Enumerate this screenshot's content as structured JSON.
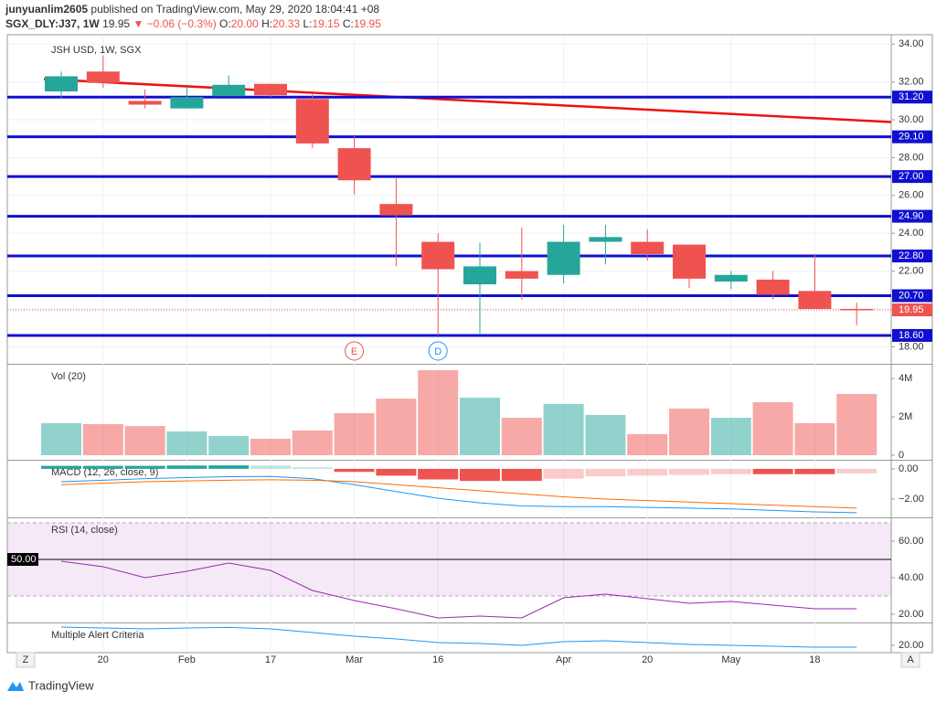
{
  "header": {
    "author": "junyuanlim2605",
    "published": "published on TradingView.com, May 29, 2020 18:04:41 +08",
    "symbol": "SGX_DLY:J37, 1W",
    "last": "19.95",
    "change": "▼ −0.06 (−0.3%)",
    "ohlc": [
      {
        "label": "O:",
        "value": "20.00"
      },
      {
        "label": "H:",
        "value": "20.33"
      },
      {
        "label": "L:",
        "value": "19.15"
      },
      {
        "label": "C:",
        "value": "19.95"
      }
    ]
  },
  "footer": {
    "logo": "TradingView",
    "zoom": "Z",
    "auto": "A"
  },
  "chart_data": [
    {
      "type": "candlestick",
      "title": "JSH USD, 1W, SGX",
      "categories": [
        null,
        "20",
        null,
        "Feb",
        null,
        "17",
        null,
        "Mar",
        null,
        "16",
        null,
        null,
        "Apr",
        null,
        "20",
        null,
        "May",
        null,
        "18",
        null
      ],
      "open": [
        31.5,
        32.55,
        31.0,
        30.6,
        31.25,
        31.9,
        31.1,
        28.5,
        25.55,
        23.55,
        21.3,
        22.0,
        21.8,
        23.55,
        23.55,
        23.4,
        21.45,
        21.55,
        20.95,
        20.0
      ],
      "high": [
        32.55,
        33.4,
        31.6,
        31.7,
        32.35,
        31.9,
        31.35,
        29.15,
        26.9,
        24.0,
        23.5,
        24.3,
        24.45,
        24.45,
        24.2,
        23.4,
        22.0,
        22.0,
        22.9,
        20.33
      ],
      "low": [
        31.1,
        31.7,
        30.6,
        30.6,
        31.25,
        31.2,
        28.5,
        26.05,
        22.25,
        18.6,
        18.7,
        20.5,
        21.35,
        22.35,
        22.55,
        21.1,
        21.05,
        20.5,
        20.0,
        19.15
      ],
      "close": [
        32.3,
        31.95,
        30.8,
        31.2,
        31.85,
        31.3,
        28.75,
        26.8,
        24.95,
        22.1,
        22.25,
        21.6,
        23.55,
        23.8,
        22.9,
        21.6,
        21.8,
        20.75,
        20.0,
        19.95
      ],
      "up_color": "#26a69a",
      "down_color": "#ef5350",
      "ylim": [
        17.1,
        34.4
      ],
      "yticks": [
        {
          "value": 18,
          "label": "18.00"
        },
        {
          "value": 20,
          "label": "20.00"
        },
        {
          "value": 22,
          "label": "22.00"
        },
        {
          "value": 24,
          "label": "24.00"
        },
        {
          "value": 26,
          "label": "26.00"
        },
        {
          "value": 28,
          "label": "28.00"
        },
        {
          "value": 30,
          "label": "30.00"
        },
        {
          "value": 32,
          "label": "32.00"
        },
        {
          "value": 34,
          "label": "34.00"
        }
      ],
      "grid": true,
      "levels": [
        {
          "value": 31.2,
          "label": "31.20"
        },
        {
          "value": 29.1,
          "label": "29.10"
        },
        {
          "value": 27.0,
          "label": "27.00"
        },
        {
          "value": 24.9,
          "label": "24.90"
        },
        {
          "value": 22.8,
          "label": "22.80"
        },
        {
          "value": 20.7,
          "label": "20.70"
        },
        {
          "value": 18.6,
          "label": "18.60"
        }
      ],
      "level_color": "#1010d0",
      "last_price": {
        "value": 19.95,
        "label": "19.95"
      },
      "trend_line": {
        "values": [
          32.15,
          29.88
        ],
        "color": "#f01010"
      },
      "event_markers": [
        {
          "label": "E",
          "color": "#ef5350"
        },
        {
          "label": "D",
          "color": "#2196f3"
        }
      ]
    },
    {
      "type": "bar",
      "title": "Vol (20)",
      "values": [
        1670000,
        1620000,
        1520000,
        1240000,
        1000000,
        860000,
        1290000,
        2190000,
        2950000,
        4430000,
        3000000,
        1950000,
        2670000,
        2100000,
        1100000,
        2430000,
        1950000,
        2760000,
        1670000,
        3190000
      ],
      "ylim": [
        -190000,
        4670000
      ],
      "yticks": [
        0,
        {
          "value": 2000000,
          "label": "2M"
        },
        {
          "value": 4000000,
          "label": "4M"
        }
      ]
    },
    {
      "type": "macd",
      "title": "MACD (12, 26, close, 9)",
      "macd": [
        -0.85,
        -0.75,
        -0.65,
        -0.58,
        -0.52,
        -0.5,
        -0.65,
        -1.05,
        -1.5,
        -1.95,
        -2.25,
        -2.45,
        -2.5,
        -2.5,
        -2.55,
        -2.6,
        -2.65,
        -2.75,
        -2.85,
        -2.9
      ],
      "signal": [
        -1.05,
        -0.95,
        -0.85,
        -0.8,
        -0.75,
        -0.72,
        -0.75,
        -0.85,
        -1.05,
        -1.25,
        -1.45,
        -1.65,
        -1.85,
        -2.0,
        -2.1,
        -2.2,
        -2.3,
        -2.4,
        -2.5,
        -2.6
      ],
      "histogram": [
        0.2,
        0.2,
        0.2,
        0.22,
        0.23,
        0.22,
        0.1,
        -0.2,
        -0.45,
        -0.7,
        -0.8,
        -0.8,
        -0.65,
        -0.5,
        -0.45,
        -0.4,
        -0.35,
        -0.35,
        -0.35,
        -0.3
      ],
      "macd_color": "#2196f3",
      "signal_color": "#ff6d00",
      "ylim": [
        -3.27,
        0.48
      ],
      "yticks": [
        {
          "value": 0,
          "label": "0.00"
        },
        {
          "value": -2,
          "label": "−2.00"
        }
      ]
    },
    {
      "type": "line",
      "title": "RSI (14, close)",
      "values": [
        49,
        46,
        40,
        43.5,
        48,
        44,
        33,
        27.5,
        23,
        18,
        19,
        18,
        29,
        31,
        28.5,
        26,
        27,
        25,
        23,
        23
      ],
      "color": "#9c27b0",
      "ylim": [
        15,
        72
      ],
      "yticks": [
        {
          "value": 20,
          "label": "20.00"
        },
        {
          "value": 40,
          "label": "40.00"
        },
        {
          "value": 60,
          "label": "60.00"
        }
      ],
      "level": {
        "value": 50,
        "label": "50.00"
      },
      "bands": [
        30,
        70
      ]
    },
    {
      "type": "line",
      "title": "Multiple Alert Criteria",
      "values": [
        25.0,
        24.75,
        24.5,
        24.75,
        24.9,
        24.5,
        23.5,
        22.5,
        21.75,
        20.75,
        20.5,
        20.0,
        21.0,
        21.25,
        20.75,
        20.25,
        20.0,
        19.75,
        19.5,
        19.5
      ],
      "color": "#2196f3",
      "ylim": [
        18.5,
        25.75
      ],
      "yticks": [
        {
          "value": 20,
          "label": "20.00"
        }
      ]
    }
  ]
}
